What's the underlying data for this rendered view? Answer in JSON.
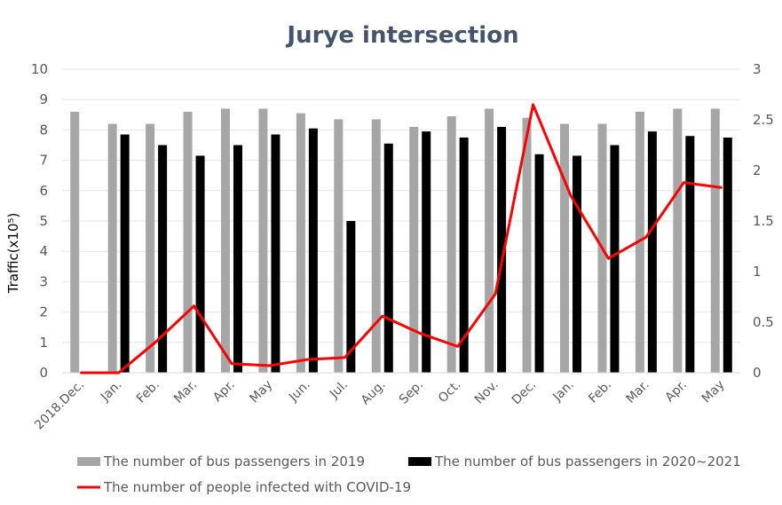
{
  "chart_data": {
    "type": "bar",
    "title": "Jurye intersection",
    "ylabel": "Traffic(x10⁵)",
    "ylim": [
      0,
      10
    ],
    "y2lim": [
      0,
      3
    ],
    "yticks": [
      "0",
      "1",
      "2",
      "3",
      "4",
      "5",
      "6",
      "7",
      "8",
      "9",
      "10"
    ],
    "y2ticks": [
      "0",
      "0.5",
      "1",
      "1.5",
      "2",
      "2.5",
      "3"
    ],
    "grid": true,
    "legend_position": "bottom",
    "categories": [
      "2018.Dec.",
      "Jan.",
      "Feb.",
      "Mar.",
      "Apr.",
      "May",
      "Jun.",
      "Jul.",
      "Aug.",
      "Sep.",
      "Oct.",
      "Nov.",
      "Dec.",
      "Jan.",
      "Feb.",
      "Mar.",
      "Apr.",
      "May"
    ],
    "series": [
      {
        "name": "The number of bus passengers in 2019",
        "kind": "bar",
        "color": "#a6a6a6",
        "values": [
          8.6,
          8.2,
          8.2,
          8.6,
          8.7,
          8.7,
          8.55,
          8.35,
          8.35,
          8.1,
          8.45,
          8.7,
          8.4,
          8.2,
          8.2,
          8.6,
          8.7,
          8.7
        ]
      },
      {
        "name": "The number of bus passengers in 2020~2021",
        "kind": "bar",
        "color": "#000000",
        "values": [
          null,
          7.85,
          7.5,
          7.15,
          7.5,
          7.85,
          8.05,
          5.0,
          7.55,
          7.95,
          7.75,
          8.1,
          7.2,
          7.15,
          7.5,
          7.95,
          7.8,
          7.75
        ]
      },
      {
        "name": "The number of people infected with COVID-19",
        "kind": "line",
        "axis": "right",
        "color": "#ff0000",
        "values": [
          0,
          0,
          0.31,
          0.66,
          0.09,
          0.07,
          0.13,
          0.15,
          0.56,
          0.39,
          0.26,
          0.78,
          2.65,
          1.75,
          1.13,
          1.34,
          1.88,
          1.83
        ]
      }
    ]
  }
}
